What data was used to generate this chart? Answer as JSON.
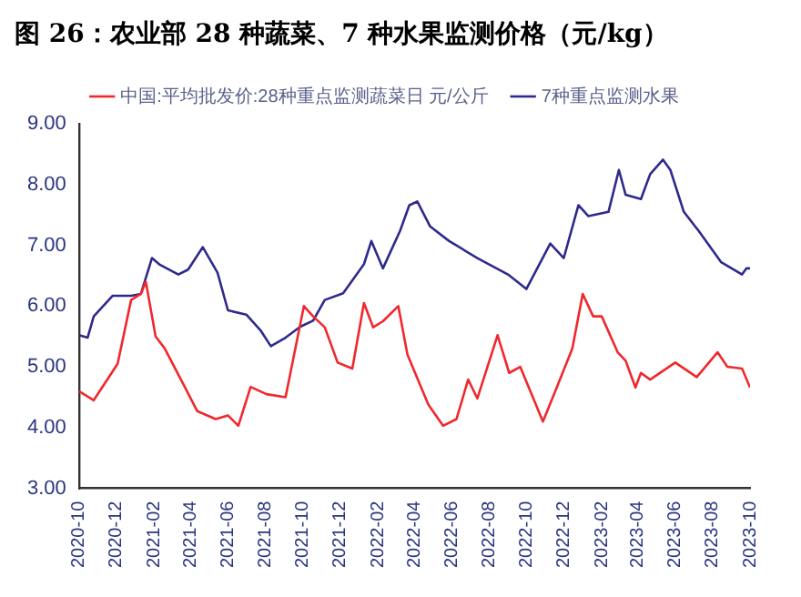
{
  "chart_data": {
    "type": "line",
    "title": "图 26：农业部 28 种蔬菜、7 种水果监测价格（元/kg）",
    "series": [
      {
        "name": "中国:平均批发价:28种重点监测蔬菜日 元/公斤",
        "color": "#f0282d",
        "x": [
          "2020-10-01",
          "2020-10-25",
          "2020-12-03",
          "2020-12-25",
          "2021-01-10",
          "2021-01-18",
          "2021-02-03",
          "2021-02-18",
          "2021-03-21",
          "2021-04-12",
          "2021-05-12",
          "2021-06-01",
          "2021-06-18",
          "2021-07-08",
          "2021-08-03",
          "2021-09-03",
          "2021-10-03",
          "2021-10-18",
          "2021-11-06",
          "2021-11-27",
          "2021-12-21",
          "2022-01-09",
          "2022-01-24",
          "2022-02-09",
          "2022-03-06",
          "2022-03-21",
          "2022-04-24",
          "2022-05-18",
          "2022-06-09",
          "2022-06-28",
          "2022-07-13",
          "2022-08-15",
          "2022-09-03",
          "2022-09-21",
          "2022-10-28",
          "2022-11-18",
          "2022-12-15",
          "2023-01-01",
          "2023-01-18",
          "2023-02-01",
          "2023-02-27",
          "2023-03-12",
          "2023-03-28",
          "2023-04-06",
          "2023-04-21",
          "2023-06-01",
          "2023-07-06",
          "2023-08-09",
          "2023-08-25",
          "2023-09-18",
          "2023-10-01"
        ],
        "values": [
          4.6,
          4.45,
          5.05,
          6.1,
          6.2,
          6.4,
          5.5,
          5.3,
          4.7,
          4.27,
          4.14,
          4.2,
          4.03,
          4.67,
          4.55,
          4.5,
          6.0,
          5.83,
          5.65,
          5.07,
          4.97,
          6.05,
          5.65,
          5.75,
          6.0,
          5.2,
          4.38,
          4.03,
          4.14,
          4.79,
          4.48,
          5.52,
          4.9,
          5.0,
          4.1,
          4.62,
          5.3,
          6.2,
          5.83,
          5.83,
          5.24,
          5.1,
          4.66,
          4.9,
          4.79,
          5.07,
          4.83,
          5.24,
          5.0,
          4.97,
          4.66
        ]
      },
      {
        "name": "7种重点监测水果",
        "color": "#2e2a8c",
        "x": [
          "2020-10-01",
          "2020-10-15",
          "2020-10-25",
          "2020-11-25",
          "2020-12-25",
          "2021-01-10",
          "2021-01-28",
          "2021-02-10",
          "2021-03-12",
          "2021-03-28",
          "2021-04-21",
          "2021-05-15",
          "2021-06-01",
          "2021-07-01",
          "2021-07-25",
          "2021-08-10",
          "2021-09-03",
          "2021-09-27",
          "2021-10-18",
          "2021-11-06",
          "2021-12-06",
          "2022-01-09",
          "2022-01-21",
          "2022-02-09",
          "2022-03-09",
          "2022-03-24",
          "2022-04-06",
          "2022-04-27",
          "2022-05-28",
          "2022-07-13",
          "2022-09-01",
          "2022-10-01",
          "2022-11-09",
          "2022-12-01",
          "2022-12-25",
          "2023-01-10",
          "2023-02-12",
          "2023-03-01",
          "2023-03-12",
          "2023-04-06",
          "2023-04-21",
          "2023-05-12",
          "2023-05-24",
          "2023-06-15",
          "2023-07-09",
          "2023-08-15",
          "2023-09-18",
          "2023-09-25",
          "2023-10-01"
        ],
        "values": [
          5.52,
          5.48,
          5.83,
          6.17,
          6.17,
          6.2,
          6.79,
          6.68,
          6.52,
          6.6,
          6.97,
          6.55,
          5.93,
          5.86,
          5.59,
          5.34,
          5.48,
          5.66,
          5.76,
          6.1,
          6.21,
          6.69,
          7.07,
          6.62,
          7.24,
          7.66,
          7.72,
          7.31,
          7.07,
          6.79,
          6.52,
          6.28,
          7.03,
          6.79,
          7.66,
          7.48,
          7.55,
          8.24,
          7.83,
          7.76,
          8.17,
          8.41,
          8.24,
          7.55,
          7.24,
          6.72,
          6.52,
          6.62,
          6.62
        ]
      }
    ],
    "xlim": [
      "2020-10",
      "2023-10"
    ],
    "xticks": [
      "2020-10",
      "2020-12",
      "2021-02",
      "2021-04",
      "2021-06",
      "2021-08",
      "2021-10",
      "2021-12",
      "2022-02",
      "2022-04",
      "2022-06",
      "2022-08",
      "2022-10",
      "2022-12",
      "2023-02",
      "2023-04",
      "2023-06",
      "2023-08",
      "2023-10"
    ],
    "ylim": [
      3,
      9
    ],
    "yticks": [
      {
        "value": 3,
        "label": "3.00"
      },
      {
        "value": 4,
        "label": "4.00"
      },
      {
        "value": 5,
        "label": "5.00"
      },
      {
        "value": 6,
        "label": "6.00"
      },
      {
        "value": 7,
        "label": "7.00"
      },
      {
        "value": 8,
        "label": "8.00"
      },
      {
        "value": 9,
        "label": "9.00"
      }
    ],
    "grid": false,
    "legend": "top",
    "marker": "none",
    "line_style": "solid"
  }
}
